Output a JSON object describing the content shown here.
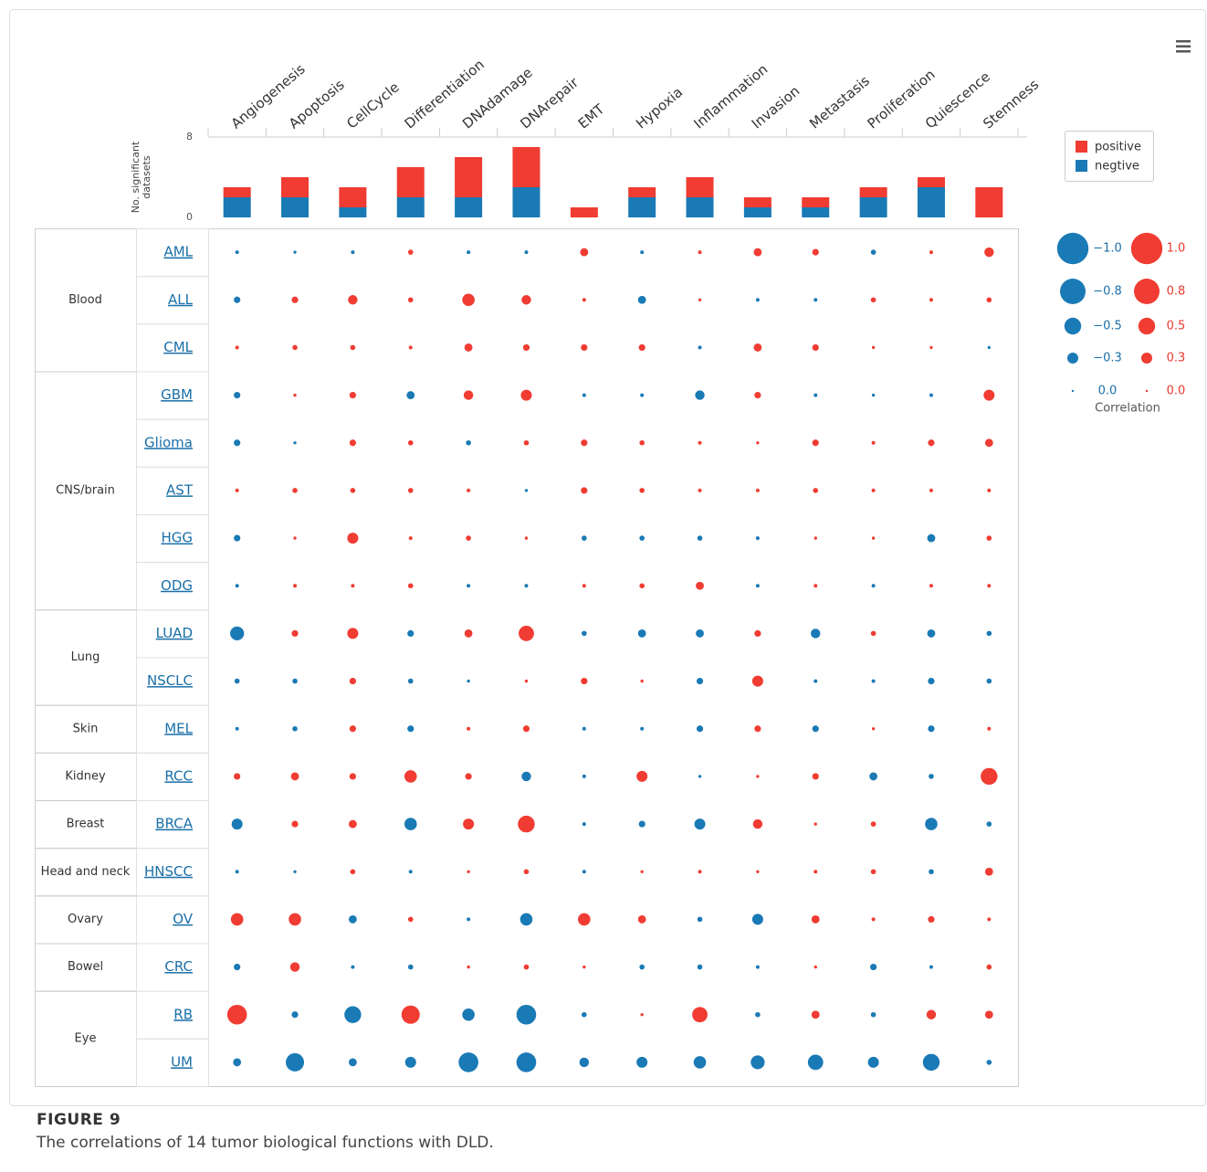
{
  "chart_data": [
    {
      "type": "stacked-bar",
      "y_label": "No. significant datasets",
      "categories": [
        "Angiogenesis",
        "Apoptosis",
        "CellCycle",
        "Differentiation",
        "DNAdamage",
        "DNArepair",
        "EMT",
        "Hypoxia",
        "Inflammation",
        "Invasion",
        "Metastasis",
        "Proliferation",
        "Quiescence",
        "Stemness"
      ],
      "series": [
        {
          "name": "positive",
          "color": "#f03c32",
          "values": [
            1,
            2,
            2,
            3,
            4,
            4,
            1,
            1,
            2,
            1,
            1,
            1,
            1,
            3
          ]
        },
        {
          "name": "negtive",
          "color": "#1a7ab5",
          "values": [
            2,
            2,
            1,
            2,
            2,
            3,
            0,
            2,
            2,
            1,
            1,
            2,
            3,
            0
          ]
        }
      ],
      "ylim": [
        0,
        8
      ],
      "yticks": [
        0,
        8
      ],
      "legend": "right"
    },
    {
      "type": "bubble-matrix",
      "legend_title": "Correlation",
      "legend": {
        "negative": [
          {
            "value": -1,
            "label": "−1.0"
          },
          {
            "value": -0.8,
            "label": "−0.8"
          },
          {
            "value": -0.5,
            "label": "−0.5"
          },
          {
            "value": -0.3,
            "label": "−0.3"
          },
          {
            "value": 0,
            "label": "0.0"
          }
        ],
        "positive": [
          {
            "value": 1,
            "label": "1.0"
          },
          {
            "value": 0.8,
            "label": "0.8"
          },
          {
            "value": 0.5,
            "label": "0.5"
          },
          {
            "value": 0.3,
            "label": "0.3"
          },
          {
            "value": 0,
            "label": "0.0"
          }
        ]
      },
      "groups": [
        {
          "name": "Blood",
          "rows": [
            "AML",
            "ALL",
            "CML"
          ],
          "values": [
            [
              -0.05,
              -0.03,
              -0.05,
              0.1,
              -0.05,
              -0.05,
              0.2,
              -0.05,
              0.05,
              0.2,
              0.15,
              -0.1,
              0.05,
              0.25
            ],
            [
              -0.15,
              0.15,
              0.25,
              0.1,
              0.35,
              0.25,
              0.05,
              -0.2,
              0.03,
              -0.05,
              -0.05,
              0.1,
              0.05,
              0.1
            ],
            [
              0.05,
              0.1,
              0.1,
              0.05,
              0.2,
              0.15,
              0.15,
              0.15,
              -0.05,
              0.2,
              0.15,
              0.03,
              0.03,
              -0.03
            ]
          ]
        },
        {
          "name": "CNS/brain",
          "rows": [
            "GBM",
            "Glioma",
            "AST",
            "HGG",
            "ODG"
          ],
          "values": [
            [
              -0.15,
              0.03,
              0.15,
              -0.2,
              0.25,
              0.3,
              -0.05,
              -0.05,
              -0.25,
              0.15,
              -0.05,
              -0.03,
              -0.05,
              0.3
            ],
            [
              -0.15,
              -0.03,
              0.15,
              0.1,
              -0.1,
              0.1,
              0.15,
              0.1,
              0.05,
              0.03,
              0.15,
              0.05,
              0.15,
              0.2
            ],
            [
              0.05,
              0.1,
              0.1,
              0.1,
              0.05,
              -0.03,
              0.15,
              0.1,
              0.05,
              0.05,
              0.1,
              0.05,
              0.05,
              0.05
            ],
            [
              -0.15,
              0.03,
              0.3,
              0.05,
              0.1,
              0.03,
              -0.1,
              -0.1,
              -0.1,
              -0.05,
              0.03,
              0.03,
              -0.2,
              0.1
            ],
            [
              -0.05,
              0.05,
              0.05,
              0.1,
              -0.05,
              -0.05,
              0.05,
              0.1,
              0.2,
              -0.05,
              0.05,
              -0.05,
              0.05,
              0.05
            ]
          ]
        },
        {
          "name": "Lung",
          "rows": [
            "LUAD",
            "NSCLC"
          ],
          "values": [
            [
              -0.4,
              0.15,
              0.3,
              -0.15,
              0.2,
              0.45,
              -0.1,
              -0.2,
              -0.2,
              0.15,
              -0.25,
              0.1,
              -0.2,
              -0.1
            ],
            [
              -0.1,
              -0.1,
              0.15,
              -0.1,
              -0.03,
              0.03,
              0.15,
              0.03,
              -0.15,
              0.3,
              -0.05,
              -0.05,
              -0.15,
              -0.1
            ]
          ]
        },
        {
          "name": "Skin",
          "rows": [
            "MEL"
          ],
          "values": [
            [
              -0.05,
              -0.1,
              0.15,
              -0.15,
              0.05,
              0.15,
              -0.05,
              -0.05,
              -0.15,
              0.15,
              -0.15,
              0.03,
              -0.15,
              0.05
            ]
          ]
        },
        {
          "name": "Kidney",
          "rows": [
            "RCC"
          ],
          "values": [
            [
              0.15,
              0.2,
              0.15,
              0.35,
              0.15,
              -0.25,
              -0.05,
              0.3,
              -0.03,
              0.03,
              0.15,
              -0.2,
              -0.1,
              0.5
            ]
          ]
        },
        {
          "name": "Breast",
          "rows": [
            "BRCA"
          ],
          "values": [
            [
              -0.3,
              0.15,
              0.2,
              -0.35,
              0.3,
              0.5,
              -0.05,
              -0.15,
              -0.3,
              0.25,
              0.03,
              0.1,
              -0.35,
              -0.1
            ]
          ]
        },
        {
          "name": "Head and neck",
          "rows": [
            "HNSCC"
          ],
          "values": [
            [
              -0.05,
              -0.03,
              0.1,
              -0.05,
              0.03,
              0.1,
              -0.05,
              0.03,
              0.05,
              0.03,
              0.05,
              0.1,
              -0.1,
              0.2
            ]
          ]
        },
        {
          "name": "Ovary",
          "rows": [
            "OV"
          ],
          "values": [
            [
              0.35,
              0.35,
              -0.2,
              0.1,
              -0.05,
              -0.35,
              0.35,
              0.2,
              -0.1,
              -0.3,
              0.2,
              0.05,
              0.15,
              0.05
            ]
          ]
        },
        {
          "name": "Bowel",
          "rows": [
            "CRC"
          ],
          "values": [
            [
              -0.15,
              0.25,
              -0.05,
              -0.1,
              0.03,
              0.1,
              0.03,
              -0.1,
              -0.1,
              -0.05,
              0.03,
              -0.15,
              -0.05,
              0.1
            ]
          ]
        },
        {
          "name": "Eye",
          "rows": [
            "RB",
            "UM"
          ],
          "values": [
            [
              0.6,
              -0.15,
              -0.5,
              0.55,
              -0.35,
              -0.6,
              -0.1,
              0.03,
              0.45,
              -0.1,
              0.2,
              -0.1,
              0.25,
              0.2
            ],
            [
              -0.2,
              -0.55,
              -0.2,
              -0.3,
              -0.6,
              -0.6,
              -0.25,
              -0.3,
              -0.35,
              -0.4,
              -0.45,
              -0.3,
              -0.5,
              -0.1
            ]
          ]
        }
      ]
    }
  ],
  "figure": {
    "label": "FIGURE 9",
    "caption": "The correlations of 14 tumor biological functions with DLD."
  }
}
